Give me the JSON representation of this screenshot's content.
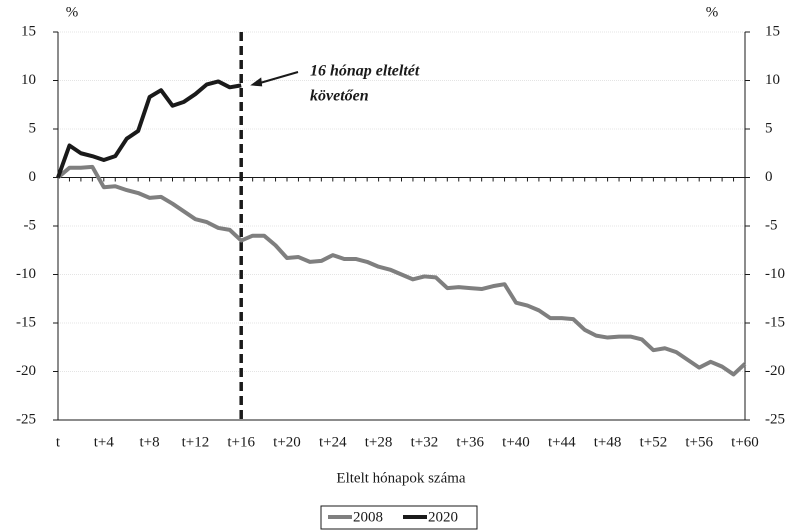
{
  "chart_data": {
    "type": "line",
    "unit_left": "%",
    "unit_right": "%",
    "x_label": "Eltelt hónapok száma",
    "annotation": [
      "16 hónap elteltét",
      "követően"
    ],
    "categories": [
      "t",
      null,
      null,
      null,
      "t+4",
      null,
      null,
      null,
      "t+8",
      null,
      null,
      null,
      "t+12",
      null,
      null,
      null,
      "t+16",
      null,
      null,
      null,
      "t+20",
      null,
      null,
      null,
      "t+24",
      null,
      null,
      null,
      "t+28",
      null,
      null,
      null,
      "t+32",
      null,
      null,
      null,
      "t+36",
      null,
      null,
      null,
      "t+40",
      null,
      null,
      null,
      "t+44",
      null,
      null,
      null,
      "t+48",
      null,
      null,
      null,
      "t+52",
      null,
      null,
      null,
      "t+56",
      null,
      null,
      null,
      "t+60"
    ],
    "series": [
      {
        "name": "2008",
        "color": "#7f7f7f",
        "values": [
          0,
          1.0,
          1.0,
          1.1,
          -1.0,
          -0.9,
          -1.3,
          -1.6,
          -2.1,
          -2.0,
          -2.7,
          -3.5,
          -4.3,
          -4.6,
          -5.2,
          -5.4,
          -6.5,
          -6.0,
          -6.0,
          -7.0,
          -8.3,
          -8.2,
          -8.7,
          -8.6,
          -8.0,
          -8.4,
          -8.4,
          -8.7,
          -9.2,
          -9.5,
          -10.0,
          -10.5,
          -10.2,
          -10.3,
          -11.4,
          -11.3,
          -11.4,
          -11.5,
          -11.2,
          -11.0,
          -12.9,
          -13.2,
          -13.7,
          -14.5,
          -14.5,
          -14.6,
          -15.7,
          -16.3,
          -16.5,
          -16.4,
          -16.4,
          -16.7,
          -17.8,
          -17.6,
          -18.0,
          -18.8,
          -19.6,
          -19.0,
          -19.5,
          -20.3,
          -19.2
        ]
      },
      {
        "name": "2020",
        "color": "#1a1a1a",
        "values": [
          0,
          3.3,
          2.5,
          2.2,
          1.8,
          2.2,
          4.0,
          4.8,
          8.3,
          9.0,
          7.4,
          7.8,
          8.6,
          9.6,
          9.9,
          9.3,
          9.5,
          null,
          null,
          null,
          null,
          null,
          null,
          null,
          null,
          null,
          null,
          null,
          null,
          null,
          null,
          null,
          null,
          null,
          null,
          null,
          null,
          null,
          null,
          null,
          null,
          null,
          null,
          null,
          null,
          null,
          null,
          null,
          null,
          null,
          null,
          null,
          null,
          null,
          null,
          null,
          null,
          null,
          null,
          null,
          null
        ]
      }
    ],
    "ylim": [
      -25,
      15
    ],
    "yticks": [
      -25,
      -20,
      -15,
      -10,
      -5,
      0,
      5,
      10,
      15
    ],
    "y2lim": [
      -25,
      15
    ],
    "y2ticks": [
      -25,
      -20,
      -15,
      -10,
      -5,
      0,
      5,
      10,
      15
    ],
    "grid": true,
    "legend": "bottom"
  }
}
